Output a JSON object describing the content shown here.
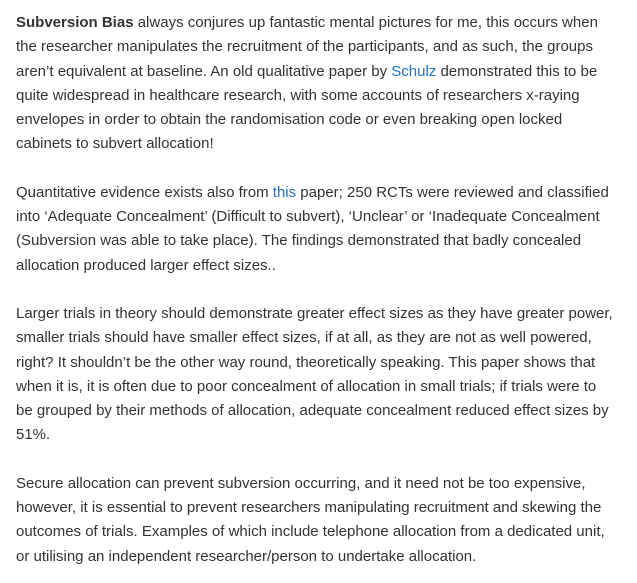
{
  "colors": {
    "text": "#333333",
    "link": "#1e73be",
    "background": "#ffffff"
  },
  "p1": {
    "bold": "Subversion Bias",
    "text_a": " always conjures up fantastic mental pictures for me, this occurs when the researcher manipulates the recruitment of the participants, and as such, the groups aren’t equivalent at baseline. An old qualitative paper by ",
    "link": "Schulz",
    "text_b": " demonstrated this to be quite widespread in healthcare research, with some accounts of researchers x-raying envelopes in order to obtain the randomisation code or even breaking open locked cabinets to subvert allocation!"
  },
  "p2": {
    "text_a": "Quantitative evidence exists also from ",
    "link": "this",
    "text_b": " paper; 250 RCTs were reviewed and classified into ‘Adequate Concealment’ (Difficult to subvert), ‘Unclear’ or ‘Inadequate Concealment (Subversion was able to take place). The findings demonstrated that badly concealed allocation produced larger effect sizes.."
  },
  "p3": {
    "text": "Larger trials in theory should demonstrate greater effect sizes as they have greater power, smaller trials should have smaller effect sizes, if at all, as they are not as well powered, right? It shouldn’t be the other way round, theoretically speaking. This paper shows that when it is, it is often due to poor concealment of allocation in small trials; if trials were to be grouped by their methods of allocation, adequate concealment reduced effect sizes by 51%."
  },
  "p4": {
    "text": "Secure allocation can prevent subversion occurring, and it need not be too expensive, however, it is essential to prevent researchers manipulating recruitment and skewing the outcomes of trials. Examples of which include telephone allocation from a dedicated unit, or utilising an independent researcher/person to undertake allocation."
  }
}
